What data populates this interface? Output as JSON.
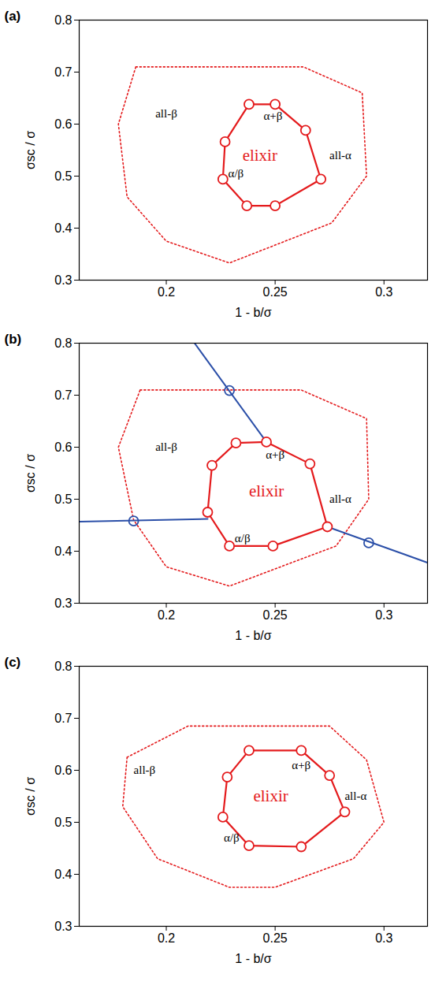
{
  "chart_data": [
    {
      "type": "line",
      "panel": "(a)",
      "xlabel": "1 - b/σ",
      "ylabel": "σsc / σ",
      "xlim": [
        0.16,
        0.32
      ],
      "ylim": [
        0.3,
        0.8
      ],
      "xticks": [
        0.2,
        0.25,
        0.3
      ],
      "yticks": [
        0.3,
        0.4,
        0.5,
        0.6,
        0.7,
        0.8
      ],
      "grid": false,
      "outer_region": {
        "color": "#e41a1c",
        "line_style": "dotted",
        "x": [
          0.186,
          0.263,
          0.29,
          0.292,
          0.276,
          0.229,
          0.2,
          0.182,
          0.178
        ],
        "y": [
          0.71,
          0.71,
          0.66,
          0.5,
          0.41,
          0.333,
          0.375,
          0.46,
          0.6
        ]
      },
      "elixir_region": {
        "color": "#e41a1c",
        "line_style": "solid",
        "marker": "circle",
        "x": [
          0.238,
          0.25,
          0.264,
          0.271,
          0.25,
          0.237,
          0.226,
          0.227
        ],
        "y": [
          0.638,
          0.638,
          0.588,
          0.494,
          0.443,
          0.443,
          0.494,
          0.566
        ]
      },
      "annotations": [
        {
          "text": "all-β",
          "x": 0.2,
          "y": 0.62,
          "color": "#000000"
        },
        {
          "text": "α+β",
          "x": 0.249,
          "y": 0.615,
          "color": "#000000"
        },
        {
          "text": "elixir",
          "x": 0.243,
          "y": 0.54,
          "color": "#e41a1c"
        },
        {
          "text": "all-α",
          "x": 0.28,
          "y": 0.54,
          "color": "#000000"
        },
        {
          "text": "α/β",
          "x": 0.232,
          "y": 0.505,
          "color": "#000000"
        }
      ]
    },
    {
      "type": "line",
      "panel": "(b)",
      "xlabel": "1 - b/σ",
      "ylabel": "σsc / σ",
      "xlim": [
        0.16,
        0.32
      ],
      "ylim": [
        0.3,
        0.8
      ],
      "xticks": [
        0.2,
        0.25,
        0.3
      ],
      "yticks": [
        0.3,
        0.4,
        0.5,
        0.6,
        0.7,
        0.8
      ],
      "grid": false,
      "outer_region": {
        "color": "#e41a1c",
        "line_style": "dotted",
        "x": [
          0.188,
          0.262,
          0.292,
          0.293,
          0.278,
          0.229,
          0.2,
          0.185,
          0.178
        ],
        "y": [
          0.71,
          0.71,
          0.655,
          0.5,
          0.41,
          0.333,
          0.37,
          0.46,
          0.6
        ]
      },
      "elixir_region": {
        "color": "#e41a1c",
        "line_style": "solid",
        "marker": "circle",
        "x": [
          0.232,
          0.246,
          0.266,
          0.274,
          0.249,
          0.229,
          0.219,
          0.221
        ],
        "y": [
          0.608,
          0.61,
          0.568,
          0.447,
          0.41,
          0.41,
          0.475,
          0.565
        ]
      },
      "lines": [
        {
          "color": "#2b4fa8",
          "x": [
            0.213,
            0.246
          ],
          "y": [
            0.8,
            0.61
          ]
        },
        {
          "color": "#2b4fa8",
          "x": [
            0.16,
            0.219
          ],
          "y": [
            0.457,
            0.462
          ]
        },
        {
          "color": "#2b4fa8",
          "x": [
            0.274,
            0.32
          ],
          "y": [
            0.447,
            0.378
          ]
        }
      ],
      "line_points": {
        "color": "#2b4fa8",
        "marker": "circle",
        "x": [
          0.229,
          0.185,
          0.293
        ],
        "y": [
          0.709,
          0.458,
          0.416
        ]
      },
      "annotations": [
        {
          "text": "all-β",
          "x": 0.2,
          "y": 0.6,
          "color": "#000000"
        },
        {
          "text": "α+β",
          "x": 0.25,
          "y": 0.585,
          "color": "#000000"
        },
        {
          "text": "elixir",
          "x": 0.246,
          "y": 0.515,
          "color": "#e41a1c"
        },
        {
          "text": "all-α",
          "x": 0.28,
          "y": 0.5,
          "color": "#000000"
        },
        {
          "text": "α/β",
          "x": 0.235,
          "y": 0.425,
          "color": "#000000"
        }
      ]
    },
    {
      "type": "line",
      "panel": "(c)",
      "xlabel": "1 - b/σ",
      "ylabel": "σsc / σ",
      "xlim": [
        0.16,
        0.32
      ],
      "ylim": [
        0.3,
        0.8
      ],
      "xticks": [
        0.2,
        0.25,
        0.3
      ],
      "yticks": [
        0.3,
        0.4,
        0.5,
        0.6,
        0.7,
        0.8
      ],
      "grid": false,
      "outer_region": {
        "color": "#e41a1c",
        "line_style": "dotted",
        "x": [
          0.182,
          0.21,
          0.275,
          0.292,
          0.3,
          0.286,
          0.25,
          0.229,
          0.196,
          0.18
        ],
        "y": [
          0.625,
          0.685,
          0.685,
          0.62,
          0.5,
          0.43,
          0.375,
          0.375,
          0.43,
          0.53
        ]
      },
      "elixir_region": {
        "color": "#e41a1c",
        "line_style": "solid",
        "marker": "circle",
        "x": [
          0.238,
          0.262,
          0.275,
          0.282,
          0.262,
          0.238,
          0.226,
          0.228
        ],
        "y": [
          0.638,
          0.638,
          0.59,
          0.52,
          0.453,
          0.455,
          0.51,
          0.587
        ]
      },
      "annotations": [
        {
          "text": "all-β",
          "x": 0.19,
          "y": 0.6,
          "color": "#000000"
        },
        {
          "text": "α+β",
          "x": 0.262,
          "y": 0.61,
          "color": "#000000"
        },
        {
          "text": "elixir",
          "x": 0.248,
          "y": 0.55,
          "color": "#e41a1c"
        },
        {
          "text": "all-α",
          "x": 0.287,
          "y": 0.55,
          "color": "#000000"
        },
        {
          "text": "α/β",
          "x": 0.23,
          "y": 0.47,
          "color": "#000000"
        }
      ]
    }
  ]
}
